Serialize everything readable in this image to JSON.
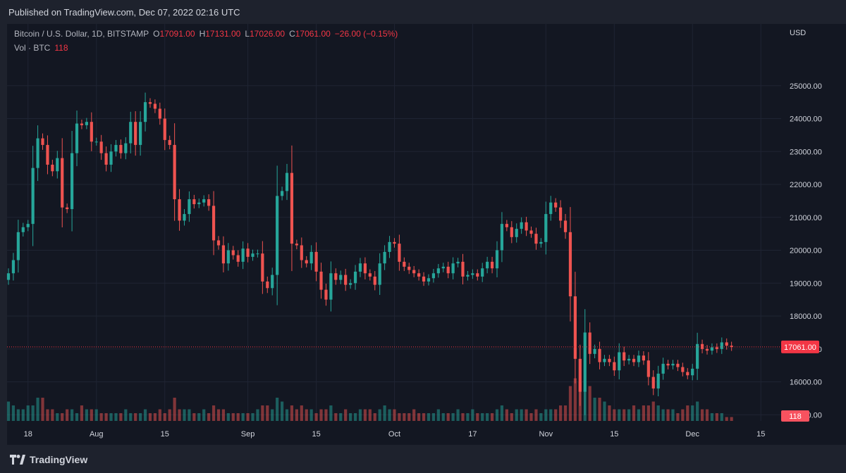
{
  "header": {
    "published": "Published on TradingView.com, Dec 07, 2022 02:16 UTC"
  },
  "legend": {
    "symbol": "Bitcoin / U.S. Dollar, 1D, BITSTAMP",
    "o_label": "O",
    "o_value": "17091.00",
    "h_label": "H",
    "h_value": "17131.00",
    "l_label": "L",
    "l_value": "17026.00",
    "c_label": "C",
    "c_value": "17061.00",
    "change": "−26.00 (−0.15%)",
    "vol_label": "Vol · BTC",
    "vol_value": "118"
  },
  "price_scale": {
    "currency": "USD",
    "last_price_label": "17061.00",
    "last_volume_label": "118"
  },
  "footer": {
    "brand": "TradingView"
  },
  "colors": {
    "up": "#26a69a",
    "down": "#ef5350",
    "bg": "#131722",
    "grid": "#1f2433",
    "last": "#f23645"
  },
  "chart_data": {
    "type": "candlestick",
    "symbol": "Bitcoin / U.S. Dollar",
    "interval": "1D",
    "exchange": "BITSTAMP",
    "currency": "USD",
    "ylim": [
      14600,
      26000
    ],
    "y_ticks": [
      15000,
      16000,
      17000,
      18000,
      19000,
      20000,
      21000,
      22000,
      23000,
      24000,
      25000
    ],
    "y_tick_labels": [
      "15000.00",
      "16000.00",
      "17000.00",
      "18000.00",
      "19000.00",
      "20000.00",
      "21000.00",
      "22000.00",
      "23000.00",
      "24000.00",
      "25000.00"
    ],
    "x_ticks": [
      {
        "label": "18",
        "index": 4
      },
      {
        "label": "Aug",
        "index": 18
      },
      {
        "label": "15",
        "index": 32
      },
      {
        "label": "Sep",
        "index": 49
      },
      {
        "label": "15",
        "index": 63
      },
      {
        "label": "Oct",
        "index": 79
      },
      {
        "label": "17",
        "index": 95
      },
      {
        "label": "Nov",
        "index": 110
      },
      {
        "label": "15",
        "index": 124
      },
      {
        "label": "Dec",
        "index": 140
      },
      {
        "label": "15",
        "index": 154
      }
    ],
    "start_date": "2022-07-14",
    "last_price": 17061,
    "closes": [
      19300,
      19700,
      20550,
      20700,
      20800,
      22500,
      23400,
      23200,
      22600,
      22400,
      22800,
      21300,
      21250,
      22950,
      23850,
      23800,
      23900,
      23300,
      23300,
      22950,
      22600,
      23000,
      23200,
      22950,
      23250,
      23900,
      23200,
      23900,
      24500,
      24450,
      24300,
      24000,
      23350,
      23200,
      21550,
      20900,
      21100,
      21550,
      21400,
      21450,
      21550,
      21350,
      20300,
      20150,
      19600,
      20000,
      19850,
      19650,
      20050,
      19800,
      19900,
      19900,
      19050,
      18850,
      19250,
      21650,
      21800,
      22350,
      20200,
      20150,
      19700,
      19600,
      19950,
      19350,
      18800,
      18500,
      19300,
      19100,
      19250,
      18950,
      19000,
      19350,
      19600,
      19300,
      19200,
      18950,
      19600,
      19950,
      20250,
      20200,
      19650,
      19500,
      19400,
      19300,
      19200,
      19050,
      19150,
      19300,
      19450,
      19500,
      19300,
      19600,
      19650,
      19200,
      19250,
      19300,
      19200,
      19450,
      19650,
      19450,
      20000,
      20800,
      20700,
      20400,
      20650,
      20850,
      20600,
      20500,
      20200,
      20250,
      21100,
      21450,
      21300,
      20900,
      20550,
      18600,
      16700,
      15700,
      17500,
      16850,
      17000,
      16600,
      16700,
      16600,
      16350,
      16900,
      16650,
      16700,
      16600,
      16800,
      16650,
      16150,
      15800,
      16250,
      16550,
      16500,
      16550,
      16450,
      16300,
      16200,
      16400,
      17150,
      17000,
      16950,
      17050,
      17000,
      17200,
      17100,
      17061
    ],
    "volumes": [
      5,
      4,
      3,
      3,
      4,
      4,
      6,
      6,
      3,
      3,
      2,
      2,
      3,
      3,
      2,
      4,
      3,
      3,
      3,
      2,
      2,
      2,
      2,
      2,
      3,
      2,
      2,
      2,
      3,
      2,
      2,
      3,
      2,
      3,
      6,
      3,
      3,
      3,
      2,
      2,
      3,
      2,
      4,
      3,
      3,
      2,
      2,
      2,
      2,
      2,
      2,
      3,
      4,
      4,
      3,
      6,
      5,
      3,
      4,
      3,
      4,
      3,
      3,
      2,
      3,
      3,
      4,
      2,
      2,
      3,
      2,
      2,
      3,
      3,
      3,
      2,
      3,
      4,
      3,
      3,
      2,
      2,
      2,
      3,
      2,
      2,
      2,
      2,
      3,
      2,
      2,
      2,
      3,
      2,
      2,
      3,
      2,
      2,
      2,
      2,
      3,
      4,
      3,
      2,
      3,
      3,
      3,
      2,
      3,
      2,
      3,
      3,
      3,
      4,
      4,
      9,
      11,
      10,
      8,
      9,
      6,
      6,
      5,
      4,
      3,
      3,
      3,
      3,
      4,
      3,
      4,
      4,
      5,
      4,
      3,
      3,
      3,
      2,
      3,
      4,
      4,
      5,
      3,
      3,
      2,
      2,
      2,
      1,
      1
    ]
  }
}
